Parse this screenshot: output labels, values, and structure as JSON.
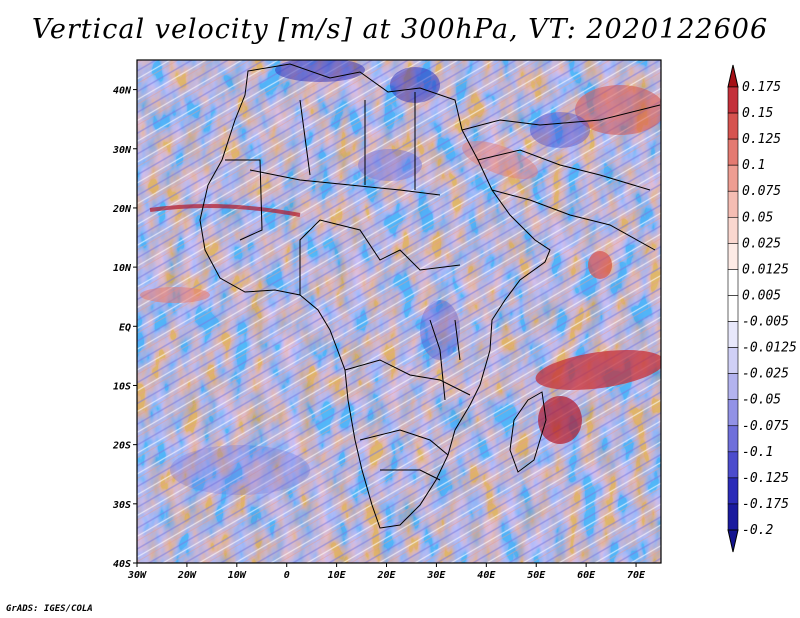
{
  "title": "Vertical velocity [m/s] at 300hPa, VT: 2020122606",
  "credit": "GrADS: IGES/COLA",
  "map": {
    "region": "Africa",
    "lon_range": [
      -30,
      75
    ],
    "lat_range": [
      -40,
      45
    ],
    "x_ticks": [
      {
        "lon": -30,
        "label": "30W"
      },
      {
        "lon": -20,
        "label": "20W"
      },
      {
        "lon": -10,
        "label": "10W"
      },
      {
        "lon": 0,
        "label": "0"
      },
      {
        "lon": 10,
        "label": "10E"
      },
      {
        "lon": 20,
        "label": "20E"
      },
      {
        "lon": 30,
        "label": "30E"
      },
      {
        "lon": 40,
        "label": "40E"
      },
      {
        "lon": 50,
        "label": "50E"
      },
      {
        "lon": 60,
        "label": "60E"
      },
      {
        "lon": 70,
        "label": "70E"
      }
    ],
    "y_ticks": [
      {
        "lat": 40,
        "label": "40N"
      },
      {
        "lat": 30,
        "label": "30N"
      },
      {
        "lat": 20,
        "label": "20N"
      },
      {
        "lat": 10,
        "label": "10N"
      },
      {
        "lat": 0,
        "label": "EQ"
      },
      {
        "lat": -10,
        "label": "10S"
      },
      {
        "lat": -20,
        "label": "20S"
      },
      {
        "lat": -30,
        "label": "30S"
      },
      {
        "lat": -40,
        "label": "40S"
      }
    ]
  },
  "colorbar": {
    "levels": [
      {
        "label": "0.175",
        "color": "#b2182b"
      },
      {
        "label": "0.15",
        "color": "#c4303a"
      },
      {
        "label": "0.125",
        "color": "#d6534f"
      },
      {
        "label": "0.1",
        "color": "#e47a71"
      },
      {
        "label": "0.075",
        "color": "#ee9d92"
      },
      {
        "label": "0.05",
        "color": "#f5bdb3"
      },
      {
        "label": "0.025",
        "color": "#fad7cf"
      },
      {
        "label": "0.0125",
        "color": "#fdebe6"
      },
      {
        "label": "0.005",
        "color": "#ffffff"
      },
      {
        "label": "-0.005",
        "color": "#ffffff"
      },
      {
        "label": "-0.0125",
        "color": "#e8e8fb"
      },
      {
        "label": "-0.025",
        "color": "#d0d0f6"
      },
      {
        "label": "-0.05",
        "color": "#b3b3ef"
      },
      {
        "label": "-0.075",
        "color": "#9292e6"
      },
      {
        "label": "-0.1",
        "color": "#6f6fdb"
      },
      {
        "label": "-0.125",
        "color": "#4c4ccd"
      },
      {
        "label": "-0.175",
        "color": "#2b2bb8"
      },
      {
        "label": "-0.2",
        "color": "#1a1a9e"
      }
    ],
    "top_arrow_color": "#a50f15",
    "bottom_arrow_color": "#14148f"
  }
}
